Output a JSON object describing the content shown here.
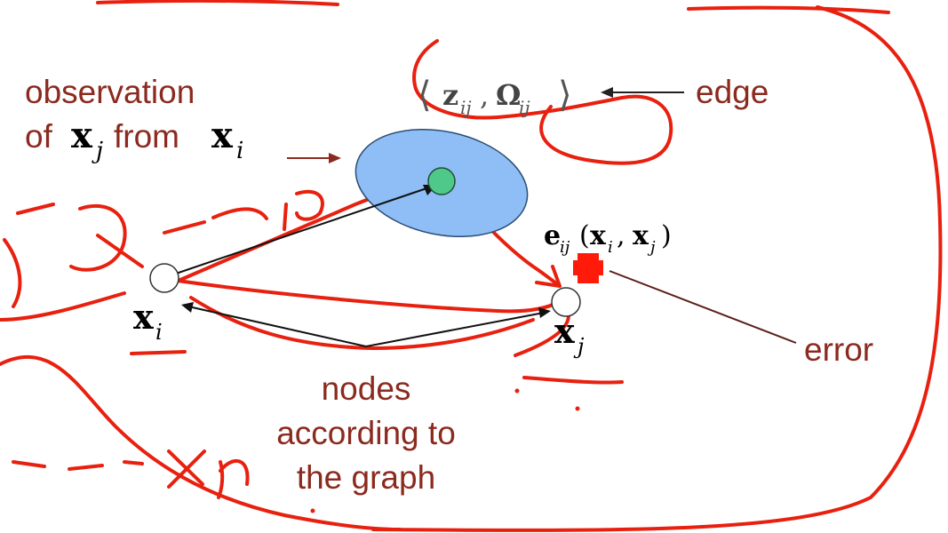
{
  "colors": {
    "label_text": "#8b2a1f",
    "ink_annotation": "#e8200f",
    "ellipse_fill": "#8fbdf5",
    "ellipse_stroke": "#2b4d73",
    "observed_node": "#4ec98a",
    "error_marker": "#ff1a0a"
  },
  "labels": {
    "observation_line1": "observation",
    "observation_of": "of",
    "observation_from": "from",
    "edge": "edge",
    "error": "error",
    "nodes_line1": "nodes",
    "nodes_line2": "according to",
    "nodes_line3": "the graph"
  },
  "math": {
    "x_bold": "x",
    "sub_i": "i",
    "sub_j": "j",
    "sub_ij": "ij",
    "edge_open": "⟨",
    "edge_z": "z",
    "edge_comma": ",",
    "edge_omega": "Ω",
    "edge_close": "⟩",
    "error_e": "e",
    "error_args_open": "(",
    "error_args_comma": ",",
    "error_args_close": ")"
  },
  "icons": {
    "error_marker": "plus-cross-icon"
  }
}
